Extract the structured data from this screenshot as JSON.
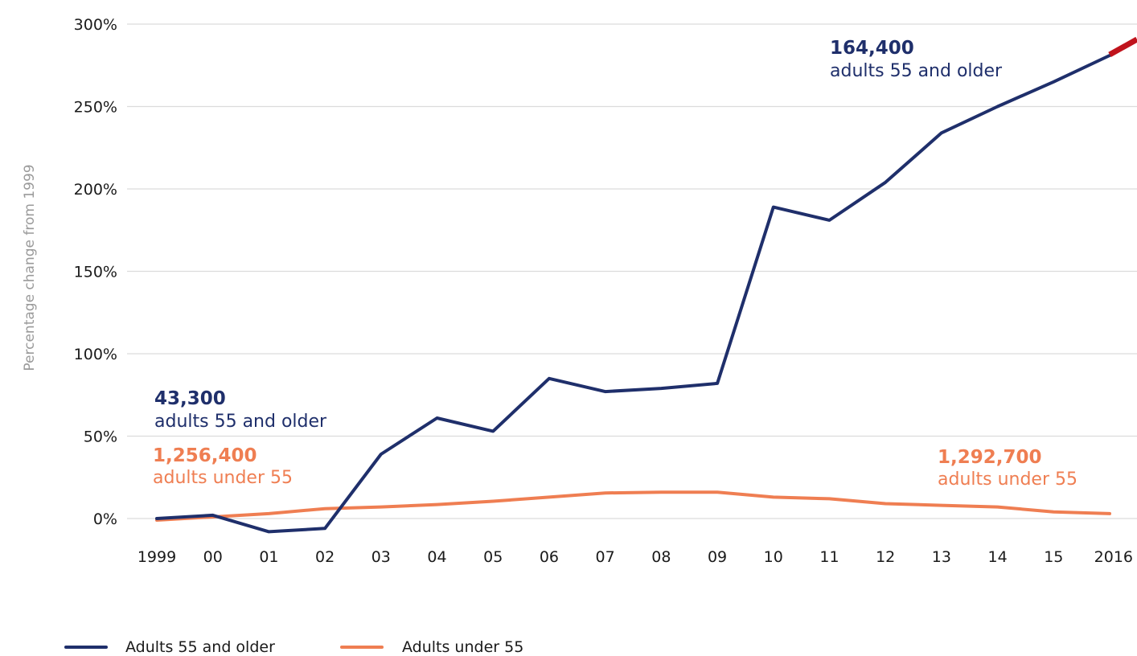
{
  "chart_data": {
    "type": "line",
    "categories": [
      "1999",
      "00",
      "01",
      "02",
      "03",
      "04",
      "05",
      "06",
      "07",
      "08",
      "09",
      "10",
      "11",
      "12",
      "13",
      "14",
      "15",
      "2016"
    ],
    "xlabel": "",
    "ylabel": "Percentage change from 1999",
    "ylim": [
      0,
      300
    ],
    "yticks": [
      0,
      50,
      100,
      150,
      200,
      250,
      300
    ],
    "ytick_labels": [
      "0%",
      "50%",
      "100%",
      "150%",
      "200%",
      "250%",
      "300%"
    ],
    "grid": "horizontal",
    "legend_position": "bottom-left",
    "series": [
      {
        "name": "Adults 55 and older",
        "color": "#1f2f6b",
        "values": [
          0,
          2,
          -8,
          -6,
          39,
          61,
          53,
          85,
          77,
          79,
          82,
          189,
          181,
          204,
          234,
          250,
          265,
          281
        ]
      },
      {
        "name": "Adults under 55",
        "color": "#ef7e52",
        "values": [
          -1,
          1,
          3,
          6,
          7,
          8.5,
          10.5,
          13,
          15.5,
          16,
          16,
          13,
          12,
          9,
          8,
          7,
          4,
          3
        ]
      }
    ],
    "annotations": [
      {
        "bold": "43,300",
        "text": "adults 55 and older",
        "color": "#1f2f6b"
      },
      {
        "bold": "1,256,400",
        "text": "adults under 55",
        "color": "#ef7e52"
      },
      {
        "bold": "164,400",
        "text": "adults 55 and older",
        "color": "#1f2f6b"
      },
      {
        "bold": "1,292,700",
        "text": "adults under 55",
        "color": "#ef7e52"
      }
    ],
    "accent_color": "#c0131c"
  }
}
